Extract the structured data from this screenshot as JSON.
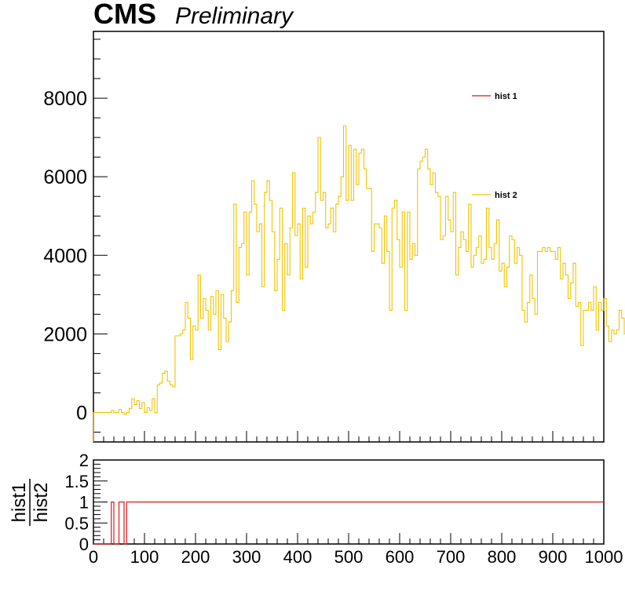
{
  "header": {
    "experiment": "CMS",
    "status": "Preliminary"
  },
  "legend": {
    "entries": [
      "hist 1",
      "hist 2"
    ],
    "colors": [
      "#d81a1a",
      "#f2c400"
    ]
  },
  "chart_data": [
    {
      "type": "histogram-step",
      "title": "CMS Preliminary",
      "xlabel": "",
      "ylabel": "",
      "xlim": [
        0,
        1000
      ],
      "ylim": [
        -750,
        9700
      ],
      "yticks": [
        0,
        2000,
        4000,
        6000,
        8000
      ],
      "ytick_labels": [
        "0",
        "2000",
        "4000",
        "6000",
        "8000"
      ],
      "bin_width": 5,
      "series": [
        {
          "name": "hist 1",
          "color": "#d81a1a",
          "values": []
        },
        {
          "name": "hist 2",
          "color": "#f2c400",
          "values": [
            0,
            0,
            0,
            0,
            0,
            0,
            0,
            50,
            0,
            0,
            80,
            0,
            -50,
            0,
            100,
            350,
            200,
            300,
            100,
            250,
            0,
            120,
            50,
            350,
            0,
            700,
            750,
            1000,
            1050,
            800,
            700,
            650,
            1950,
            1950,
            2000,
            2100,
            2800,
            2400,
            1350,
            2200,
            2100,
            3500,
            2400,
            2900,
            2600,
            2100,
            2950,
            2500,
            3100,
            1600,
            3000,
            2400,
            1800,
            2300,
            3100,
            5300,
            2800,
            4200,
            4300,
            5100,
            3500,
            5100,
            5900,
            5300,
            4600,
            4800,
            3200,
            5600,
            5900,
            5400,
            4600,
            3100,
            3900,
            5200,
            2600,
            4300,
            3500,
            4700,
            6100,
            4500,
            4800,
            3400,
            5200,
            3700,
            5000,
            4800,
            5100,
            5600,
            7000,
            5400,
            5600,
            4700,
            4800,
            5200,
            4600,
            5300,
            5500,
            6000,
            7300,
            5400,
            6800,
            5400,
            6700,
            5800,
            6600,
            6700,
            6200,
            5700,
            5700,
            4100,
            4800,
            4800,
            4700,
            3800,
            5000,
            4100,
            2600,
            5200,
            5400,
            4400,
            3700,
            5100,
            2600,
            5100,
            3900,
            4300,
            4000,
            6200,
            6400,
            6500,
            6700,
            6200,
            5800,
            6100,
            5600,
            5500,
            4400,
            4500,
            5500,
            4900,
            4600,
            5600,
            3500,
            4200,
            4600,
            4400,
            4100,
            5300,
            3700,
            4000,
            4200,
            4500,
            3800,
            3900,
            5200,
            4200,
            3900,
            4300,
            4900,
            3600,
            3800,
            3200,
            3700,
            4500,
            4400,
            3800,
            4200,
            4000,
            2600,
            2300,
            2800,
            3500,
            2900,
            2500,
            4100,
            4100,
            4200,
            4100,
            4200,
            4100,
            4100,
            3900,
            4200,
            3400,
            3800,
            3500,
            2900,
            3300,
            3800,
            2700,
            2800,
            1700,
            2600,
            2600,
            2800,
            2600,
            3200,
            2100,
            2800,
            2600,
            2900,
            2200,
            1800,
            2100,
            2000,
            2100,
            2600,
            2400,
            2000,
            2600,
            3900,
            1700,
            2200,
            2600,
            2900,
            2100,
            2100,
            2400,
            2100,
            1900,
            1900,
            2400,
            2000,
            1800,
            2200,
            2100,
            2000,
            3100,
            1800,
            2200,
            1900,
            1700,
            1900,
            1900,
            2500,
            1700,
            1800,
            2300,
            1300,
            1800,
            2400,
            1500,
            1600,
            2200,
            1900,
            1400,
            2100,
            2200,
            1400,
            1500,
            1500,
            1100,
            2500,
            1900,
            1500,
            1600,
            1700,
            1600,
            1100,
            1200,
            2000,
            1600,
            1900,
            1800,
            1000,
            1900,
            1600,
            1600,
            900,
            1900,
            1400,
            1600,
            1500,
            2200,
            2000,
            1200,
            1300,
            1900,
            2200,
            1900,
            1300,
            1700,
            1900,
            1600,
            1800,
            1600,
            1300,
            1800,
            2500,
            1900,
            1300,
            1700,
            1800,
            1500,
            2100,
            1800,
            1600,
            1700,
            1300,
            1600,
            1900,
            1700,
            2100,
            1600,
            1600,
            1900,
            2000,
            1700,
            1800,
            1300,
            1400,
            1900,
            1600,
            1500,
            1600,
            1700,
            1800,
            1200,
            1300,
            1900,
            1500,
            1700,
            1400,
            1600,
            1500,
            1500,
            2100,
            1800,
            1500,
            1900,
            1700,
            1300,
            1800,
            1700,
            1500,
            1500,
            1300,
            1600,
            1500,
            1700,
            1600,
            1300,
            1500,
            1800,
            1500
          ]
        }
      ]
    },
    {
      "type": "histogram-step",
      "title": "",
      "xlabel": "",
      "ylabel": "hist1/hist2",
      "ylabel_numerator": "hist1",
      "ylabel_denominator": "hist2",
      "xlim": [
        0,
        1000
      ],
      "ylim": [
        0,
        2
      ],
      "xticks": [
        0,
        100,
        200,
        300,
        400,
        500,
        600,
        700,
        800,
        900,
        1000
      ],
      "xtick_labels": [
        "0",
        "100",
        "200",
        "300",
        "400",
        "500",
        "600",
        "700",
        "800",
        "900",
        "1000"
      ],
      "yticks": [
        0,
        0.5,
        1,
        1.5,
        2
      ],
      "ytick_labels": [
        "0",
        "0.5",
        "1",
        "1.5",
        "2"
      ],
      "series": [
        {
          "name": "ratio",
          "color": "#d81a1a",
          "x": [
            0,
            35,
            35,
            40,
            40,
            50,
            50,
            60,
            60,
            65,
            65,
            1000
          ],
          "y": [
            0,
            0,
            1,
            1,
            0,
            0,
            1,
            1,
            0,
            0,
            1,
            1
          ]
        }
      ]
    }
  ]
}
